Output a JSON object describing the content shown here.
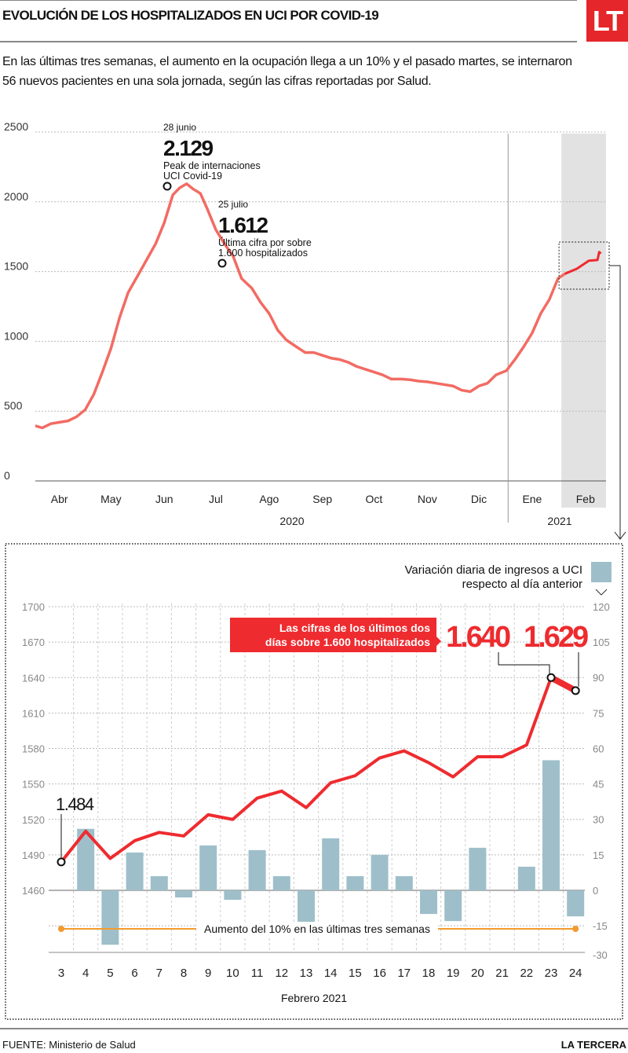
{
  "header": {
    "title": "EVOLUCIÓN DE LOS HOSPITALIZADOS EN UCI POR COVID-19",
    "logo": "LT",
    "subtitle": "En las últimas tres semanas, el aumento en la ocupación llega a un 10% y el pasado martes, se internaron 56 nuevos pacientes en una sola jornada, según las cifras reportadas por Salud."
  },
  "colors": {
    "line": "#f26b63",
    "line_zoom": "#ee2b2f",
    "bars": "#9ebfca",
    "highlight_band": "#e2e2e3",
    "orange": "#f29a2e",
    "logo_red": "#e5262b"
  },
  "chart_data": [
    {
      "type": "line",
      "ylim": [
        0,
        2500
      ],
      "yticks": [
        "0",
        "500",
        "1000",
        "1500",
        "2000",
        "2500"
      ],
      "xticks": [
        "Abr",
        "May",
        "Jun",
        "Jul",
        "Ago",
        "Sep",
        "Oct",
        "Nov",
        "Dic",
        "Ene",
        "Feb"
      ],
      "years": [
        "2020",
        "2021"
      ],
      "grid": true,
      "highlight": "Feb",
      "points": [
        [
          "2020-04-01",
          395
        ],
        [
          "2020-04-05",
          380
        ],
        [
          "2020-04-10",
          410
        ],
        [
          "2020-04-15",
          420
        ],
        [
          "2020-04-20",
          430
        ],
        [
          "2020-04-25",
          460
        ],
        [
          "2020-04-30",
          510
        ],
        [
          "2020-05-05",
          620
        ],
        [
          "2020-05-10",
          780
        ],
        [
          "2020-05-15",
          950
        ],
        [
          "2020-05-20",
          1170
        ],
        [
          "2020-05-25",
          1350
        ],
        [
          "2020-05-31",
          1480
        ],
        [
          "2020-06-05",
          1590
        ],
        [
          "2020-06-10",
          1700
        ],
        [
          "2020-06-15",
          1850
        ],
        [
          "2020-06-20",
          2050
        ],
        [
          "2020-06-24",
          2100
        ],
        [
          "2020-06-28",
          2129
        ],
        [
          "2020-07-02",
          2090
        ],
        [
          "2020-07-06",
          2060
        ],
        [
          "2020-07-10",
          1950
        ],
        [
          "2020-07-15",
          1800
        ],
        [
          "2020-07-20",
          1700
        ],
        [
          "2020-07-25",
          1612
        ],
        [
          "2020-07-30",
          1450
        ],
        [
          "2020-08-05",
          1380
        ],
        [
          "2020-08-10",
          1280
        ],
        [
          "2020-08-15",
          1200
        ],
        [
          "2020-08-20",
          1080
        ],
        [
          "2020-08-25",
          1010
        ],
        [
          "2020-08-31",
          960
        ],
        [
          "2020-09-05",
          920
        ],
        [
          "2020-09-10",
          920
        ],
        [
          "2020-09-15",
          900
        ],
        [
          "2020-09-20",
          880
        ],
        [
          "2020-09-25",
          870
        ],
        [
          "2020-09-30",
          850
        ],
        [
          "2020-10-05",
          820
        ],
        [
          "2020-10-10",
          800
        ],
        [
          "2020-10-15",
          780
        ],
        [
          "2020-10-20",
          760
        ],
        [
          "2020-10-25",
          730
        ],
        [
          "2020-10-31",
          730
        ],
        [
          "2020-11-05",
          725
        ],
        [
          "2020-11-10",
          715
        ],
        [
          "2020-11-15",
          710
        ],
        [
          "2020-11-20",
          700
        ],
        [
          "2020-11-25",
          690
        ],
        [
          "2020-11-30",
          680
        ],
        [
          "2020-12-05",
          650
        ],
        [
          "2020-12-10",
          640
        ],
        [
          "2020-12-15",
          680
        ],
        [
          "2020-12-20",
          700
        ],
        [
          "2020-12-25",
          760
        ],
        [
          "2020-12-31",
          790
        ],
        [
          "2021-01-05",
          870
        ],
        [
          "2021-01-10",
          960
        ],
        [
          "2021-01-15",
          1060
        ],
        [
          "2021-01-20",
          1200
        ],
        [
          "2021-01-25",
          1300
        ],
        [
          "2021-01-30",
          1450
        ],
        [
          "2021-02-03",
          1484
        ],
        [
          "2021-02-10",
          1520
        ],
        [
          "2021-02-17",
          1578
        ],
        [
          "2021-02-22",
          1583
        ],
        [
          "2021-02-23",
          1640
        ],
        [
          "2021-02-24",
          1629
        ]
      ],
      "annotations": [
        {
          "date": "2020-06-28",
          "value": 2129,
          "date_label": "28 junio",
          "value_label": "2.129",
          "text1": "Peak de internaciones",
          "text2": "UCI Covid-19"
        },
        {
          "date": "2020-07-25",
          "value": 1612,
          "date_label": "25 julio",
          "value_label": "1.612",
          "text1": "Última cifra por sobre",
          "text2": "1.600 hospitalizados"
        }
      ]
    },
    {
      "type": "bar+line",
      "xlabel": "Febrero 2021",
      "categories": [
        "3",
        "4",
        "5",
        "6",
        "7",
        "8",
        "9",
        "10",
        "11",
        "12",
        "13",
        "14",
        "15",
        "16",
        "17",
        "18",
        "19",
        "20",
        "21",
        "22",
        "23",
        "24"
      ],
      "line_values": [
        1484,
        1510,
        1487,
        1502,
        1509,
        1506,
        1524,
        1520,
        1538,
        1544,
        1530,
        1551,
        1557,
        1572,
        1578,
        1568,
        1556,
        1573,
        1573,
        1583,
        1640,
        1629
      ],
      "bar_values": [
        null,
        26,
        -23,
        16,
        6,
        -3,
        19,
        -4,
        17,
        6,
        -14,
        22,
        6,
        15,
        6,
        -10,
        -13,
        18,
        0,
        10,
        55,
        -11
      ],
      "ylim_left": [
        1460,
        1700
      ],
      "yticks_left": [
        "1460",
        "1490",
        "1520",
        "1550",
        "1580",
        "1610",
        "1640",
        "1670",
        "1700"
      ],
      "ylim_right": [
        -30,
        120
      ],
      "yticks_right": [
        "-30",
        "-15",
        "0",
        "15",
        "30",
        "45",
        "60",
        "75",
        "90",
        "105",
        "120"
      ],
      "legend": {
        "line1": "Variación diaria de ingresos a UCI",
        "line2": "respecto al día anterior",
        "position": "top-right"
      },
      "callout": {
        "line1": "Las cifras de los últimos dos",
        "line2": "días sobre 1.600 hospitalizados",
        "v1": "1.640",
        "v2": "1.629"
      },
      "start_label": "1.484",
      "range_label": "Aumento del 10% en las últimas tres semanas"
    }
  ],
  "footer": {
    "source": "FUENTE: Ministerio de Salud",
    "brand": "LA TERCERA"
  }
}
